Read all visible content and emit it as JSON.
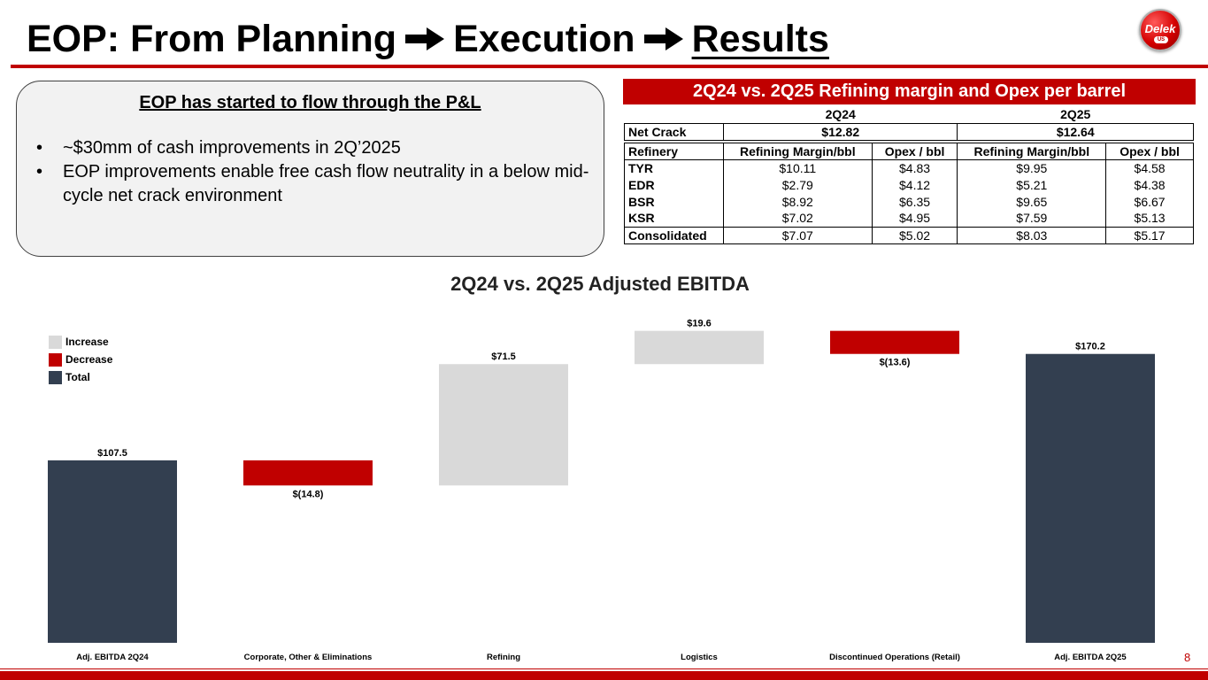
{
  "title": {
    "part1": "EOP: From Planning",
    "part2": "Execution",
    "part3": "Results"
  },
  "logo": {
    "text": "Delek",
    "sub": "US"
  },
  "callout": {
    "heading": "EOP has started to flow through the P&L",
    "bullets": [
      "~$30mm of cash improvements in 2Q’2025",
      "EOP improvements enable free cash flow neutrality in a below mid-cycle net crack environment"
    ]
  },
  "table": {
    "banner": "2Q24 vs. 2Q25 Refining margin and Opex per barrel",
    "period1": "2Q24",
    "period2": "2Q25",
    "net_crack_label": "Net Crack",
    "net_crack_1": "$12.82",
    "net_crack_2": "$12.64",
    "col_refinery": "Refinery",
    "col_margin": "Refining Margin/bbl",
    "col_opex": "Opex / bbl",
    "rows": [
      {
        "name": "TYR",
        "m1": "$10.11",
        "o1": "$4.83",
        "m2": "$9.95",
        "o2": "$4.58"
      },
      {
        "name": "EDR",
        "m1": "$2.79",
        "o1": "$4.12",
        "m2": "$5.21",
        "o2": "$4.38"
      },
      {
        "name": "BSR",
        "m1": "$8.92",
        "o1": "$6.35",
        "m2": "$9.65",
        "o2": "$6.67"
      },
      {
        "name": "KSR",
        "m1": "$7.02",
        "o1": "$4.95",
        "m2": "$7.59",
        "o2": "$5.13"
      },
      {
        "name": "Consolidated",
        "m1": "$7.07",
        "o1": "$5.02",
        "m2": "$8.03",
        "o2": "$5.17"
      }
    ]
  },
  "legend": {
    "increase": "Increase",
    "decrease": "Decrease",
    "total": "Total"
  },
  "colors": {
    "increase": "#d9d9d9",
    "decrease": "#c00000",
    "total": "#333f50",
    "accent": "#c00000"
  },
  "chart_data": {
    "type": "bar",
    "subtype": "waterfall",
    "title": "2Q24 vs. 2Q25 Adjusted EBITDA",
    "categories": [
      "Adj. EBITDA 2Q24",
      "Corporate, Other & Eliminations",
      "Refining",
      "Logistics",
      "Discontinued Operations (Retail)",
      "Adj. EBITDA 2Q25"
    ],
    "values": [
      107.5,
      -14.8,
      71.5,
      19.6,
      -13.6,
      170.2
    ],
    "kinds": [
      "total",
      "decrease",
      "increase",
      "increase",
      "decrease",
      "total"
    ],
    "data_labels": [
      "$107.5",
      "$(14.8)",
      "$71.5",
      "$19.6",
      "$(13.6)",
      "$170.2"
    ],
    "ylim": [
      0,
      185
    ],
    "grid": false,
    "legend_position": "top-left"
  },
  "page_number": "8"
}
